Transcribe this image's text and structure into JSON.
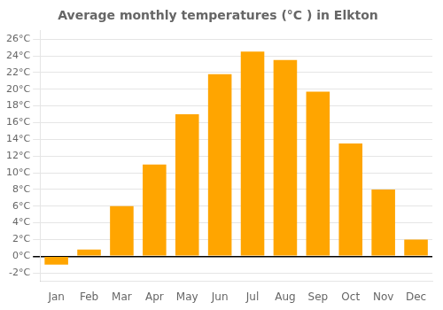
{
  "chart_data": {
    "type": "bar",
    "title": "Average monthly temperatures (°C ) in Elkton",
    "categories": [
      "Jan",
      "Feb",
      "Mar",
      "Apr",
      "May",
      "Jun",
      "Jul",
      "Aug",
      "Sep",
      "Oct",
      "Nov",
      "Dec"
    ],
    "values": [
      -1.0,
      0.8,
      6.0,
      11.0,
      17.0,
      21.8,
      24.5,
      23.5,
      19.7,
      13.5,
      8.0,
      2.0
    ],
    "color": "#FFA500",
    "ylim": [
      -3,
      27
    ],
    "yticks": [
      {
        "value": -2,
        "label": "-2°C"
      },
      {
        "value": 0,
        "label": "0°C"
      },
      {
        "value": 2,
        "label": "2°C"
      },
      {
        "value": 4,
        "label": "4°C"
      },
      {
        "value": 6,
        "label": "6°C"
      },
      {
        "value": 8,
        "label": "8°C"
      },
      {
        "value": 10,
        "label": "10°C"
      },
      {
        "value": 12,
        "label": "12°C"
      },
      {
        "value": 14,
        "label": "14°C"
      },
      {
        "value": 16,
        "label": "16°C"
      },
      {
        "value": 18,
        "label": "18°C"
      },
      {
        "value": 20,
        "label": "20°C"
      },
      {
        "value": 22,
        "label": "22°C"
      },
      {
        "value": 24,
        "label": "24°C"
      },
      {
        "value": 26,
        "label": "26°C"
      }
    ],
    "grid": true
  }
}
